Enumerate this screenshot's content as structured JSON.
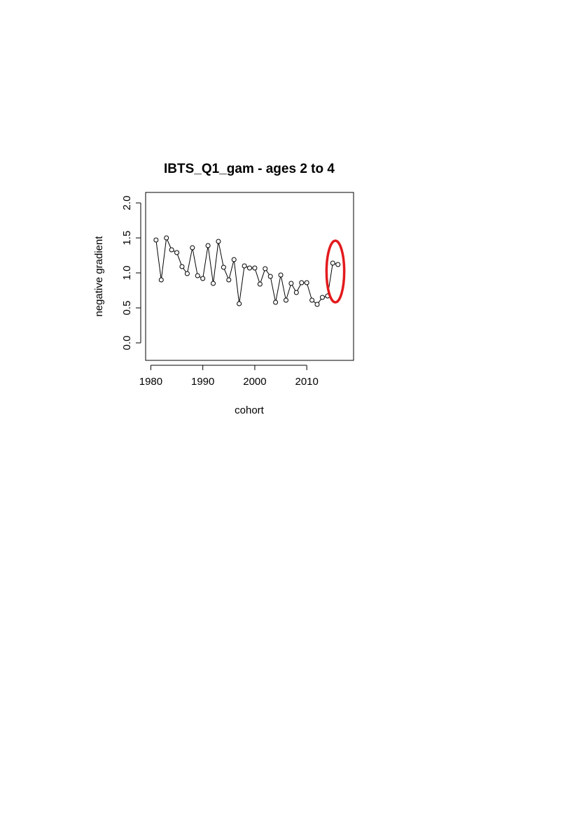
{
  "chart_data": {
    "type": "line",
    "title": "IBTS_Q1_gam - ages 2 to 4",
    "xlabel": "cohort",
    "ylabel": "negative gradient",
    "xlim": [
      1979,
      2019
    ],
    "ylim": [
      -0.25,
      2.15
    ],
    "xticks": [
      1980,
      1990,
      2000,
      2010
    ],
    "xtick_labels": [
      "1980",
      "1990",
      "2000",
      "2010"
    ],
    "yticks": [
      0.0,
      0.5,
      1.0,
      1.5,
      2.0
    ],
    "ytick_labels": [
      "0.0",
      "0.5",
      "1.0",
      "1.5",
      "2.0"
    ],
    "grid": false,
    "marker": "open-circle",
    "line_color": "#000000",
    "highlight_color": "#e31a1c",
    "x": [
      1981,
      1982,
      1983,
      1984,
      1985,
      1986,
      1987,
      1988,
      1989,
      1990,
      1991,
      1992,
      1993,
      1994,
      1995,
      1996,
      1997,
      1998,
      1999,
      2000,
      2001,
      2002,
      2003,
      2004,
      2005,
      2006,
      2007,
      2008,
      2009,
      2010,
      2011,
      2012,
      2013,
      2014,
      2015,
      2016
    ],
    "values": [
      1.47,
      0.9,
      1.5,
      1.33,
      1.29,
      1.09,
      0.99,
      1.36,
      0.96,
      0.92,
      1.39,
      0.85,
      1.45,
      1.08,
      0.9,
      1.19,
      0.56,
      1.1,
      1.07,
      1.07,
      0.84,
      1.06,
      0.95,
      0.58,
      0.97,
      0.61,
      0.85,
      0.72,
      0.86,
      0.86,
      0.61,
      0.55,
      0.65,
      0.67,
      1.14,
      1.12
    ],
    "highlight_x": [
      2014,
      2017
    ]
  }
}
